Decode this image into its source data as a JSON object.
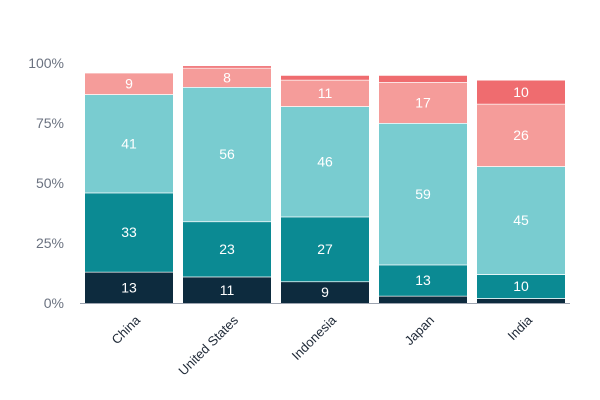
{
  "chart_data": {
    "type": "bar",
    "stacked": true,
    "categories": [
      "China",
      "United States",
      "Indonesia",
      "Japan",
      "India"
    ],
    "series": [
      {
        "color": "#0d2b3e",
        "label_color": "#ffffff",
        "values": [
          13,
          11,
          9,
          3,
          2
        ],
        "labels": [
          "13",
          "11",
          "9",
          "",
          ""
        ]
      },
      {
        "color": "#0b8a93",
        "label_color": "#ffffff",
        "values": [
          33,
          23,
          27,
          13,
          10
        ],
        "labels": [
          "33",
          "23",
          "27",
          "13",
          "10"
        ]
      },
      {
        "color": "#79ccd0",
        "label_color": "#ffffff",
        "values": [
          41,
          56,
          46,
          59,
          45
        ],
        "labels": [
          "41",
          "56",
          "46",
          "59",
          "45"
        ]
      },
      {
        "color": "#f59c9a",
        "label_color": "#ffffff",
        "values": [
          9,
          8,
          11,
          17,
          26
        ],
        "labels": [
          "9",
          "8",
          "11",
          "17",
          "26"
        ]
      },
      {
        "color": "#ef6c6f",
        "label_color": "#ffffff",
        "values": [
          0,
          1,
          2,
          3,
          10
        ],
        "labels": [
          "",
          "",
          "",
          "",
          "10"
        ]
      }
    ],
    "y_ticks": [
      {
        "value": 0,
        "label": "0%"
      },
      {
        "value": 25,
        "label": "25%"
      },
      {
        "value": 50,
        "label": "50%"
      },
      {
        "value": 75,
        "label": "75%"
      },
      {
        "value": 100,
        "label": "100%"
      }
    ],
    "ylim": [
      0,
      100
    ],
    "grid": false,
    "legend": "none",
    "title": "",
    "xlabel": "",
    "ylabel": ""
  }
}
